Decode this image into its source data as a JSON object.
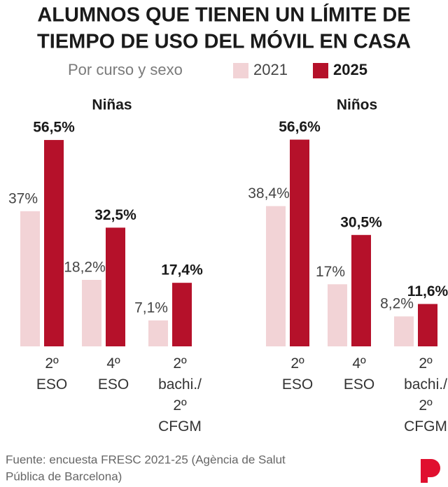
{
  "title_lines": [
    "ALUMNOS QUE TIENEN UN LÍMITE DE",
    "TIEMPO DE USO DEL MÓVIL EN CASA"
  ],
  "subtitle": "Por curso y sexo",
  "source_lines": [
    "Fuente: encuesta FRESC 2021-25 (Agència de Salut",
    "Pública de Barcelona)"
  ],
  "chart_data": [
    {
      "type": "bar",
      "title": "Niñas",
      "categories": [
        "2º ESO",
        "4º ESO",
        "2º bachi./ 2º CFGM"
      ],
      "series": [
        {
          "name": "2021",
          "color": "#f2d3d6",
          "values": [
            37,
            18.2,
            7.1
          ],
          "value_labels": [
            "37%",
            "18,2%",
            "7,1%"
          ]
        },
        {
          "name": "2025",
          "color": "#b5112a",
          "values": [
            56.5,
            32.5,
            17.4
          ],
          "value_labels": [
            "56,5%",
            "32,5%",
            "17,4%"
          ]
        }
      ]
    },
    {
      "type": "bar",
      "title": "Niños",
      "categories": [
        "2º ESO",
        "4º ESO",
        "2º bachi./ 2º CFGM"
      ],
      "series": [
        {
          "name": "2021",
          "color": "#f2d3d6",
          "values": [
            38.4,
            17,
            8.2
          ],
          "value_labels": [
            "38,4%",
            "17%",
            "8,2%"
          ]
        },
        {
          "name": "2025",
          "color": "#b5112a",
          "values": [
            56.6,
            30.5,
            11.6
          ],
          "value_labels": [
            "56,6%",
            "30,5%",
            "11,6%"
          ]
        }
      ]
    }
  ]
}
